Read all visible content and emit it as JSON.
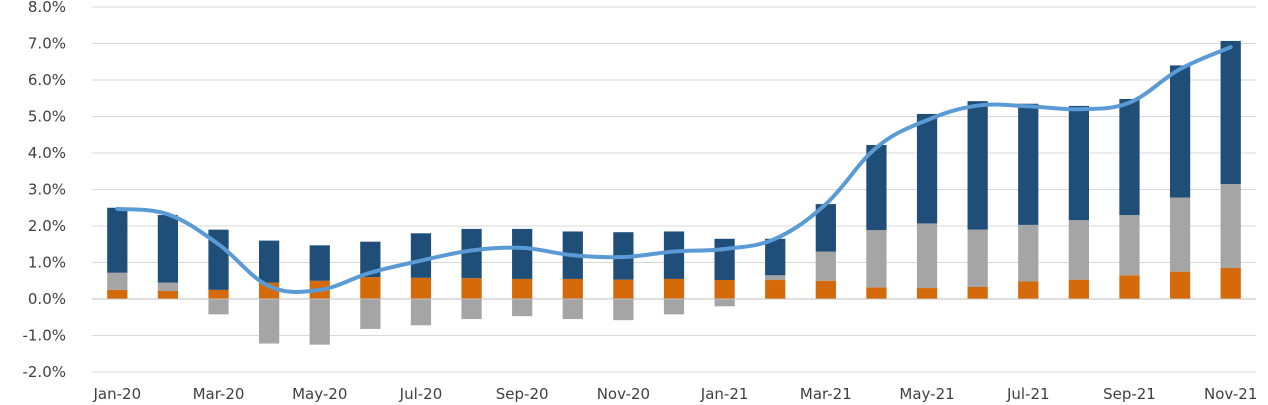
{
  "chart_data": {
    "type": "bar",
    "subtype": "stacked-bar-with-line",
    "categories": [
      "Jan-20",
      "Feb-20",
      "Mar-20",
      "Apr-20",
      "May-20",
      "Jun-20",
      "Jul-20",
      "Aug-20",
      "Sep-20",
      "Oct-20",
      "Nov-20",
      "Dec-20",
      "Jan-21",
      "Feb-21",
      "Mar-21",
      "Apr-21",
      "May-21",
      "Jun-21",
      "Jul-21",
      "Aug-21",
      "Sep-21",
      "Oct-21",
      "Nov-21"
    ],
    "x_tick_labels": [
      "Jan-20",
      "Mar-20",
      "May-20",
      "Jul-20",
      "Sep-20",
      "Nov-20",
      "Jan-21",
      "Mar-21",
      "May-21",
      "Jul-21",
      "Sep-21",
      "Nov-21"
    ],
    "y_tick_labels": [
      "-2.0%",
      "-1.0%",
      "0.0%",
      "1.0%",
      "2.0%",
      "3.0%",
      "4.0%",
      "5.0%",
      "6.0%",
      "7.0%",
      "8.0%"
    ],
    "ylim": [
      -2.0,
      8.0
    ],
    "y_unit": "%",
    "grid": true,
    "legend": "none",
    "series": [
      {
        "type": "bar",
        "color": "#d46a0a",
        "values": [
          0.25,
          0.22,
          0.25,
          0.45,
          0.5,
          0.6,
          0.58,
          0.57,
          0.55,
          0.55,
          0.53,
          0.55,
          0.52,
          0.52,
          0.5,
          0.32,
          0.3,
          0.33,
          0.48,
          0.53,
          0.65,
          0.75,
          0.85
        ]
      },
      {
        "type": "bar",
        "color": "#a5a5a5",
        "values": [
          0.47,
          0.23,
          -0.42,
          -1.22,
          -1.25,
          -0.82,
          -0.72,
          -0.55,
          -0.47,
          -0.55,
          -0.58,
          -0.42,
          -0.2,
          0.13,
          0.8,
          1.57,
          1.77,
          1.57,
          1.55,
          1.63,
          1.65,
          2.03,
          2.3
        ]
      },
      {
        "type": "bar",
        "color": "#1f4e79",
        "values": [
          1.78,
          1.85,
          1.65,
          1.15,
          0.97,
          0.97,
          1.22,
          1.35,
          1.37,
          1.3,
          1.3,
          1.3,
          1.13,
          1.0,
          1.3,
          2.33,
          3.0,
          3.52,
          3.32,
          3.13,
          3.18,
          3.62,
          3.92
        ]
      },
      {
        "type": "line",
        "color": "#5b9bd5",
        "values": [
          2.47,
          2.32,
          1.5,
          0.35,
          0.25,
          0.72,
          1.05,
          1.33,
          1.4,
          1.2,
          1.15,
          1.3,
          1.37,
          1.65,
          2.6,
          4.15,
          4.9,
          5.3,
          5.28,
          5.2,
          5.38,
          6.3,
          6.9
        ]
      }
    ]
  }
}
